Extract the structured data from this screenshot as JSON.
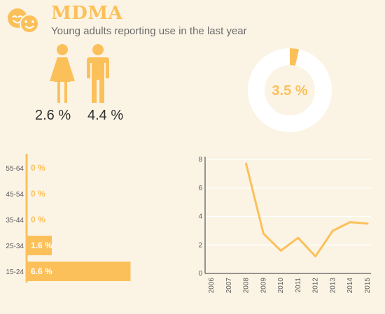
{
  "header": {
    "title": "MDMA",
    "subtitle": "Young adults reporting use in the last year"
  },
  "gender": {
    "female_value": "2.6 %",
    "male_value": "4.4 %"
  },
  "colors": {
    "accent": "#fcc05a",
    "donut_track": "#ffffff",
    "background": "#fbf4e5",
    "text_dark": "#2f2f2f"
  },
  "icons": [
    "smiley-faces-icon",
    "female-icon",
    "male-icon"
  ],
  "chart_data": [
    {
      "type": "pie",
      "values": [
        3.5,
        96.5
      ],
      "center_label": "3.5 %"
    },
    {
      "type": "bar",
      "orientation": "horizontal",
      "categories": [
        "55-64",
        "45-54",
        "35-44",
        "25-34",
        "15-24"
      ],
      "values": [
        0,
        0,
        0,
        1.6,
        6.6
      ],
      "data_labels": [
        "0 %",
        "0 %",
        "0 %",
        "1.6 %",
        "6.6 %"
      ],
      "xlim": [
        0,
        8
      ]
    },
    {
      "type": "line",
      "x": [
        "2006",
        "2007",
        "2008",
        "2009",
        "2010",
        "2011",
        "2012",
        "2013",
        "2014",
        "2015"
      ],
      "y": [
        null,
        null,
        7.7,
        2.8,
        1.6,
        2.5,
        1.2,
        3.0,
        3.6,
        3.5
      ],
      "yticks": [
        0,
        2,
        4,
        6,
        8
      ],
      "ylim": [
        0,
        8
      ],
      "grid": true
    }
  ]
}
